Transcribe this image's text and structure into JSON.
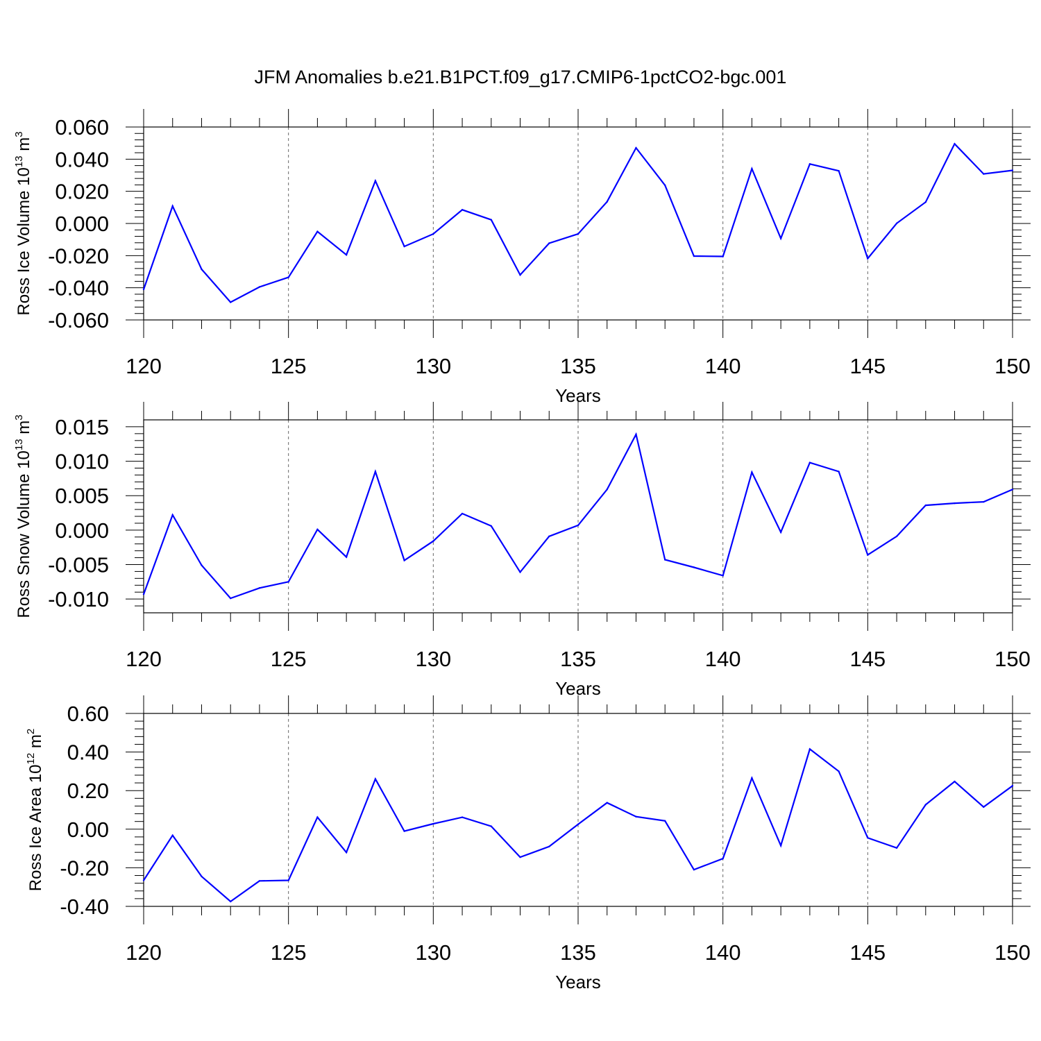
{
  "title": "JFM Anomalies b.e21.B1PCT.f09_g17.CMIP6-1pctCO2-bgc.001",
  "chart_data": [
    {
      "type": "line",
      "ylabel": {
        "text": "Ross Ice Volume 10",
        "exp": "13",
        "unit": " m",
        "unit_exp": "3"
      },
      "xlabel": "Years",
      "xlim": [
        120,
        150
      ],
      "ylim": [
        -0.06,
        0.06
      ],
      "xticks": [
        120,
        125,
        130,
        135,
        140,
        145,
        150
      ],
      "xtick_labels": [
        "120",
        "125",
        "130",
        "135",
        "140",
        "145",
        "150"
      ],
      "yticks": [
        -0.06,
        -0.04,
        -0.02,
        0.0,
        0.02,
        0.04,
        0.06
      ],
      "ytick_labels": [
        "-0.060",
        "-0.040",
        "-0.020",
        "0.000",
        "0.020",
        "0.040",
        "0.060"
      ],
      "color": "#0000ff",
      "grid": "vertical dashed at major x ticks",
      "x": [
        120,
        121,
        122,
        123,
        124,
        125,
        126,
        127,
        128,
        129,
        130,
        131,
        132,
        133,
        134,
        135,
        136,
        137,
        138,
        139,
        140,
        141,
        142,
        143,
        144,
        145,
        146,
        147,
        148,
        149,
        150
      ],
      "values": [
        -0.041,
        0.0108,
        -0.0285,
        -0.049,
        -0.0395,
        -0.0335,
        -0.005,
        -0.0195,
        0.0265,
        -0.0143,
        -0.0065,
        0.0085,
        0.0023,
        -0.032,
        -0.0123,
        -0.0065,
        0.0135,
        0.047,
        0.0238,
        -0.0203,
        -0.0205,
        0.034,
        -0.0093,
        0.037,
        0.0327,
        -0.0218,
        0.0001,
        0.0133,
        0.0495,
        0.0308,
        0.033
      ]
    },
    {
      "type": "line",
      "ylabel": {
        "text": "Ross Snow Volume 10",
        "exp": "13",
        "unit": " m",
        "unit_exp": "3"
      },
      "xlabel": "Years",
      "xlim": [
        120,
        150
      ],
      "ylim": [
        -0.012,
        0.016
      ],
      "xticks": [
        120,
        125,
        130,
        135,
        140,
        145,
        150
      ],
      "xtick_labels": [
        "120",
        "125",
        "130",
        "135",
        "140",
        "145",
        "150"
      ],
      "yticks": [
        -0.01,
        -0.005,
        0.0,
        0.005,
        0.01,
        0.015
      ],
      "ytick_labels": [
        "-0.010",
        "-0.005",
        "0.000",
        "0.005",
        "0.010",
        "0.015"
      ],
      "color": "#0000ff",
      "grid": "vertical dashed at major x ticks",
      "x": [
        120,
        121,
        122,
        123,
        124,
        125,
        126,
        127,
        128,
        129,
        130,
        131,
        132,
        133,
        134,
        135,
        136,
        137,
        138,
        139,
        140,
        141,
        142,
        143,
        144,
        145,
        146,
        147,
        148,
        149,
        150
      ],
      "values": [
        -0.0093,
        0.0022,
        -0.0051,
        -0.0099,
        -0.0084,
        -0.0075,
        0.0001,
        -0.0039,
        0.0085,
        -0.0044,
        -0.0016,
        0.0024,
        0.0006,
        -0.0061,
        -0.0009,
        0.0007,
        0.0059,
        0.0139,
        -0.0043,
        -0.0054,
        -0.0066,
        0.0084,
        -0.0003,
        0.0098,
        0.0085,
        -0.0036,
        -0.0009,
        0.0036,
        0.0039,
        0.0041,
        0.0059
      ]
    },
    {
      "type": "line",
      "ylabel": {
        "text": "Ross Ice Area 10",
        "exp": "12",
        "unit": " m",
        "unit_exp": "2"
      },
      "xlabel": "Years",
      "xlim": [
        120,
        150
      ],
      "ylim": [
        -0.4,
        0.6
      ],
      "xticks": [
        120,
        125,
        130,
        135,
        140,
        145,
        150
      ],
      "xtick_labels": [
        "120",
        "125",
        "130",
        "135",
        "140",
        "145",
        "150"
      ],
      "yticks": [
        -0.4,
        -0.2,
        0.0,
        0.2,
        0.4,
        0.6
      ],
      "ytick_labels": [
        "-0.40",
        "-0.20",
        "0.00",
        "0.20",
        "0.40",
        "0.60"
      ],
      "color": "#0000ff",
      "grid": "vertical dashed at major x ticks",
      "x": [
        120,
        121,
        122,
        123,
        124,
        125,
        126,
        127,
        128,
        129,
        130,
        131,
        132,
        133,
        134,
        135,
        136,
        137,
        138,
        139,
        140,
        141,
        142,
        143,
        144,
        145,
        146,
        147,
        148,
        149,
        150
      ],
      "values": [
        -0.265,
        -0.032,
        -0.245,
        -0.375,
        -0.268,
        -0.265,
        0.062,
        -0.12,
        0.26,
        -0.01,
        0.028,
        0.062,
        0.015,
        -0.145,
        -0.09,
        0.025,
        0.137,
        0.065,
        0.043,
        -0.21,
        -0.152,
        0.265,
        -0.085,
        0.415,
        0.3,
        -0.045,
        -0.097,
        0.127,
        0.247,
        0.115,
        0.225
      ]
    }
  ]
}
